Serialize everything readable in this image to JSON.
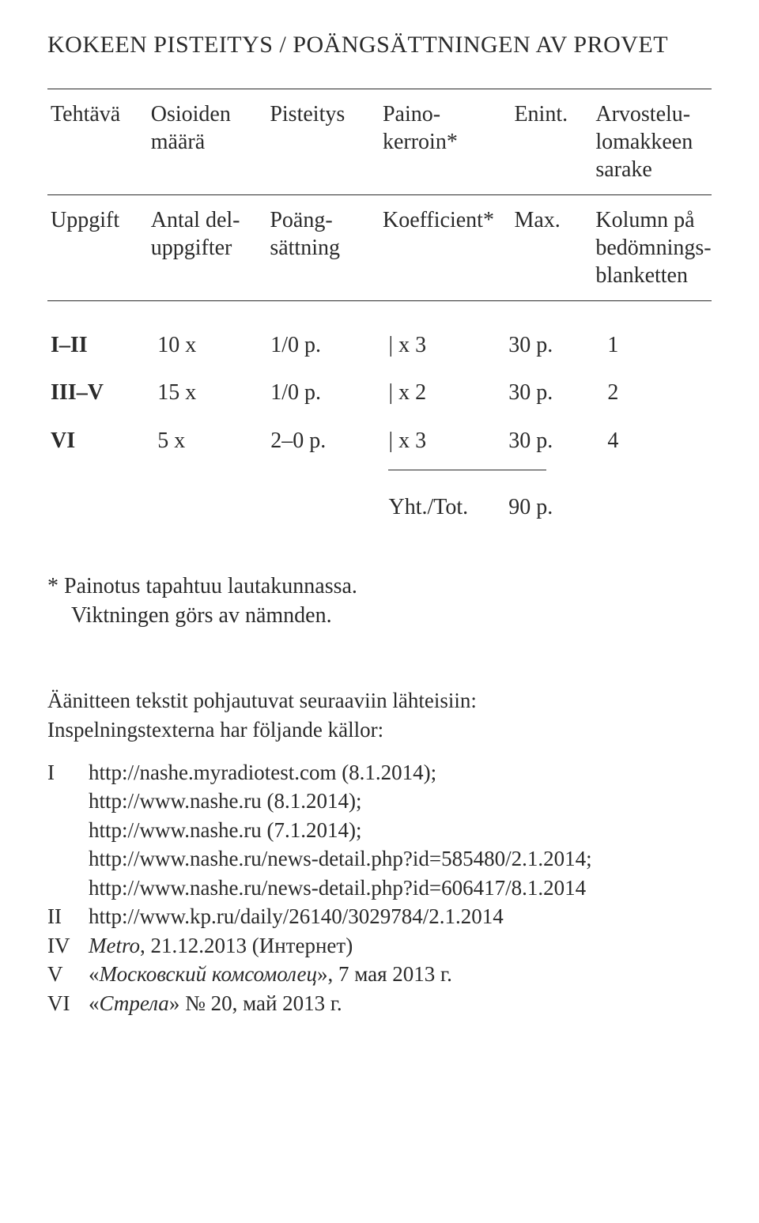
{
  "title": "KOKEEN PISTEITYS  /  POÄNGSÄTTNINGEN AV PROVET",
  "header_fi": {
    "c1": "Tehtävä",
    "c2": "Osioiden\nmäärä",
    "c3": "Pisteitys",
    "c4": "Paino-\nkerroin*",
    "c5": "Enint.",
    "c6": "Arvostelu-\nlomakkeen\nsarake"
  },
  "header_sv": {
    "c1": "Uppgift",
    "c2": "Antal del-\nuppgifter",
    "c3": "Poäng-\nsättning",
    "c4": "Koefficient*",
    "c5": "Max.",
    "c6": "Kolumn på\nbedömnings-\nblanketten"
  },
  "rows": [
    {
      "task": "I–II",
      "parts": "10  x",
      "scoring": "1/0 p.",
      "coeff": "|  x 3",
      "max": "30 p.",
      "col": "1"
    },
    {
      "task": "III–V",
      "parts": "15  x",
      "scoring": "1/0 p.",
      "coeff": "|  x 2",
      "max": "30 p.",
      "col": "2"
    },
    {
      "task": "VI",
      "parts": "5  x",
      "scoring": "2–0 p.",
      "coeff": "|  x 3",
      "max": "30 p.",
      "col": "4"
    }
  ],
  "total": {
    "label": "Yht./Tot.",
    "value": "90 p."
  },
  "footnote": {
    "line1": "*  Painotus tapahtuu lautakunnassa.",
    "line2": "Viktningen görs av nämnden."
  },
  "sources_intro": {
    "l1": "Äänitteen tekstit pohjautuvat seuraaviin lähteisiin:",
    "l2": "Inspelningstexterna har följande källor:"
  },
  "sources": [
    {
      "tag": "I",
      "lines": [
        "http://nashe.myradiotest.com (8.1.2014);",
        "http://www.nashe.ru (8.1.2014);",
        "http://www.nashe.ru (7.1.2014);",
        "http://www.nashe.ru/news-detail.php?id=585480/2.1.2014;",
        "http://www.nashe.ru/news-detail.php?id=606417/8.1.2014"
      ]
    },
    {
      "tag": "II",
      "lines": [
        "http://www.kp.ru/daily/26140/3029784/2.1.2014"
      ]
    },
    {
      "tag": "IV",
      "lines": [
        "<i>Metro</i>, 21.12.2013 (Интернет)"
      ]
    },
    {
      "tag": "V",
      "lines": [
        "«<i>Московский комсомолец</i>», 7 мая 2013 г."
      ]
    },
    {
      "tag": "VI",
      "lines": [
        "«<i>Стрела</i>» № 20, май 2013 г."
      ]
    }
  ]
}
